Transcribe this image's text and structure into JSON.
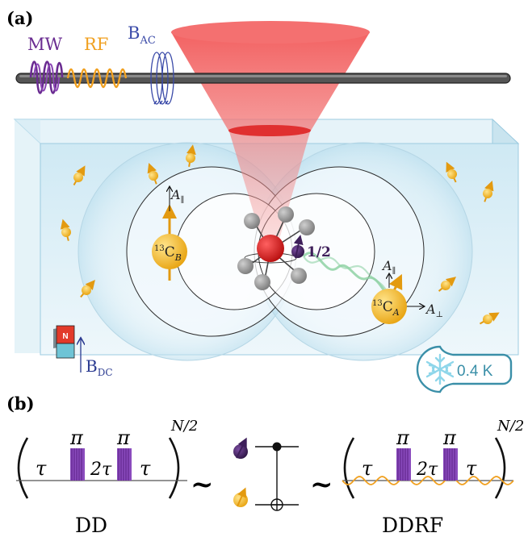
{
  "panel_a": {
    "label": "(a)",
    "mw": "MW",
    "rf": "RF",
    "bac_main": "B",
    "bac_sub": "AC",
    "spin_half": "1/2",
    "carbon_b": {
      "sup": "13",
      "main": "C",
      "sub": "B"
    },
    "carbon_a": {
      "sup": "13",
      "main": "C",
      "sub": "A"
    },
    "a_par_b": {
      "main": "A",
      "sub": "∥"
    },
    "a_par_a": {
      "main": "A",
      "sub": "∥"
    },
    "a_perp": {
      "main": "A",
      "sub": "⊥"
    },
    "magnet_n": "N",
    "bdc_main": "B",
    "bdc_sub": "DC",
    "temperature": "0.4 K"
  },
  "panel_b": {
    "label": "(b)",
    "tau": "τ",
    "two_tau": "2τ",
    "pi": "π",
    "exponent": "N/2",
    "tilde": "~",
    "dd": "DD",
    "ddrf": "DDRF"
  },
  "colors": {
    "mw_purple": "#6a2c91",
    "rf_orange": "#f0a020",
    "bac_blue": "#3a4aa8",
    "laser_red": "#ee4444",
    "nv_red": "#d82020",
    "carbon_gold": "#f5b81c",
    "electron_purple": "#3e1f5a",
    "diamond_blue": "#d9eef7",
    "cryo_teal": "#3a8fa8"
  }
}
